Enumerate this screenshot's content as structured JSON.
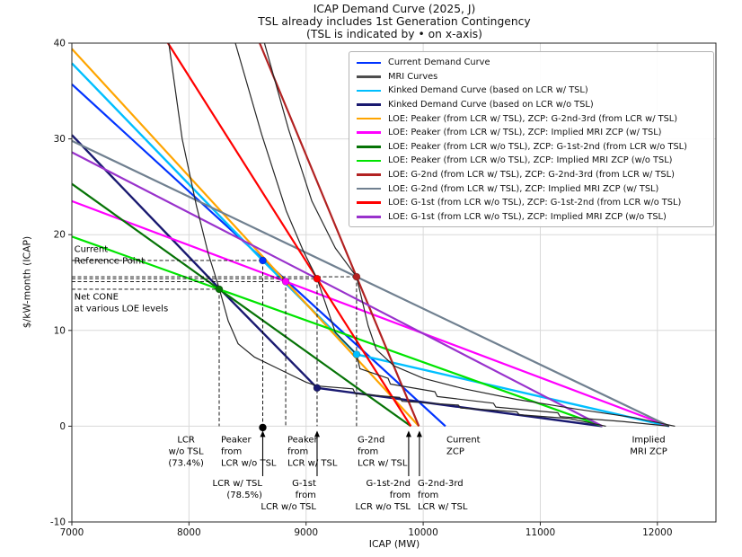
{
  "title": {
    "line1": "ICAP Demand Curve (2025, J)",
    "line2": "TSL already includes 1st Generation Contingency",
    "line3": "(TSL is indicated by • on x-axis)"
  },
  "axes": {
    "xlabel": "ICAP (MW)",
    "ylabel": "$/kW-month (ICAP)",
    "xlim": [
      7000,
      12500
    ],
    "ylim": [
      -10,
      40
    ],
    "xticks": [
      7000,
      8000,
      9000,
      10000,
      11000,
      12000
    ],
    "yticks": [
      -10,
      0,
      10,
      20,
      30,
      40
    ],
    "grid": true
  },
  "legend": {
    "position": "upper right",
    "entries": [
      {
        "label": "Current Demand Curve",
        "color": "#0033ff"
      },
      {
        "label": "MRI Curves",
        "color": "#4d4d4d"
      },
      {
        "label": "Kinked Demand Curve (based on LCR w/ TSL)",
        "color": "#00bfff"
      },
      {
        "label": "Kinked Demand Curve (based on LCR w/o TSL)",
        "color": "#191970"
      },
      {
        "label": "LOE: Peaker (from LCR w/ TSL), ZCP: G-2nd-3rd (from LCR w/ TSL)",
        "color": "#ffa500"
      },
      {
        "label": "LOE: Peaker (from LCR w/ TSL), ZCP: Implied MRI ZCP (w/ TSL)",
        "color": "#ff00ff"
      },
      {
        "label": "LOE: Peaker (from LCR w/o TSL), ZCP: G-1st-2nd (from LCR w/o TSL)",
        "color": "#067306"
      },
      {
        "label": "LOE: Peaker (from LCR w/o TSL), ZCP: Implied MRI ZCP (w/o TSL)",
        "color": "#00e400"
      },
      {
        "label": "LOE: G-2nd (from LCR w/ TSL), ZCP: G-2nd-3rd (from LCR w/ TSL)",
        "color": "#b22222"
      },
      {
        "label": "LOE: G-2nd (from LCR w/ TSL), ZCP: Implied MRI ZCP (w/ TSL)",
        "color": "#708090"
      },
      {
        "label": "LOE: G-1st (from LCR w/o TSL), ZCP: G-1st-2nd (from LCR w/o TSL)",
        "color": "#ff0000"
      },
      {
        "label": "LOE: G-1st (from LCR w/o TSL), ZCP: Implied MRI ZCP (w/o TSL)",
        "color": "#9932cc"
      }
    ]
  },
  "chart_data": {
    "type": "line",
    "xlabel": "ICAP (MW)",
    "ylabel": "$/kW-month (ICAP)",
    "key_values": {
      "lcr_wo_tsl": "73.4%",
      "lcr_w_tsl": "78.5%",
      "lcr_w_tsl_mw": 8630,
      "lcr_wo_tsl_label_mw": 7975,
      "peaker_from_lcr_wo_tsl_mw": 8258,
      "peaker_from_lcr_w_tsl_mw": 8826,
      "g1st_from_lcr_wo_tsl_mw": 9094,
      "g2nd_from_lcr_w_tsl_mw": 9431,
      "g1st_2nd_zcp_mw": 9895,
      "g2nd_3rd_zcp_mw": 9963,
      "current_zcp_mw": 10190,
      "implied_mri_zcp_w_tsl_mw": 12100,
      "implied_mri_zcp_wo_tsl_mw": 11530,
      "current_reference_price": 17.3,
      "net_cone_levels": [
        14.3,
        15.1,
        15.4,
        15.6
      ]
    },
    "series": [
      {
        "name": "current-demand-curve",
        "color": "#0033ff",
        "width": 2.2,
        "points": [
          [
            7000,
            35.7
          ],
          [
            10190,
            0
          ]
        ]
      },
      {
        "name": "kinked-demand-curve-lcr-w-tsl",
        "color": "#00bfff",
        "width": 2.4,
        "points": [
          [
            7000,
            37.9
          ],
          [
            8630,
            17.3
          ],
          [
            9431,
            7.5
          ],
          [
            12100,
            0
          ]
        ]
      },
      {
        "name": "kinked-demand-curve-lcr-wo-tsl",
        "color": "#191970",
        "width": 2.4,
        "points": [
          [
            7000,
            30.4
          ],
          [
            8258,
            14.4
          ],
          [
            9094,
            4.0
          ],
          [
            11530,
            0
          ]
        ]
      },
      {
        "name": "loe-peaker-wtsl-zcp-g2nd3rd",
        "color": "#ffa500",
        "width": 2.2,
        "points": [
          [
            7000,
            39.4
          ],
          [
            8826,
            15.1
          ],
          [
            9963,
            0
          ]
        ]
      },
      {
        "name": "loe-peaker-wtsl-zcp-implied-mri",
        "color": "#ff00ff",
        "width": 2.2,
        "points": [
          [
            7000,
            23.5
          ],
          [
            8826,
            15.1
          ],
          [
            12100,
            0
          ]
        ]
      },
      {
        "name": "loe-peaker-wotsl-zcp-g1st2nd",
        "color": "#067306",
        "width": 2.2,
        "points": [
          [
            7000,
            25.3
          ],
          [
            8258,
            14.3
          ],
          [
            9895,
            0
          ]
        ]
      },
      {
        "name": "loe-peaker-wotsl-zcp-implied-mri",
        "color": "#00e400",
        "width": 2.2,
        "points": [
          [
            7000,
            19.8
          ],
          [
            8258,
            14.3
          ],
          [
            11530,
            0
          ]
        ]
      },
      {
        "name": "loe-g2nd-wtsl-zcp-g2nd3rd",
        "color": "#b22222",
        "width": 2.2,
        "points": [
          [
            8604,
            40
          ],
          [
            9431,
            15.6
          ],
          [
            9963,
            0
          ]
        ]
      },
      {
        "name": "loe-g2nd-wtsl-zcp-implied-mri",
        "color": "#708090",
        "width": 2.2,
        "points": [
          [
            7000,
            29.8
          ],
          [
            9431,
            15.6
          ],
          [
            12100,
            0
          ]
        ]
      },
      {
        "name": "loe-g1st-wotsl-zcp-g1st2nd",
        "color": "#ff0000",
        "width": 2.2,
        "points": [
          [
            7821,
            40
          ],
          [
            9094,
            15.4
          ],
          [
            9895,
            0
          ]
        ]
      },
      {
        "name": "loe-g1st-wotsl-zcp-implied-mri",
        "color": "#9932cc",
        "width": 2.2,
        "points": [
          [
            7000,
            28.6
          ],
          [
            9094,
            15.4
          ],
          [
            11530,
            0
          ]
        ]
      },
      {
        "name": "mri-curve-a",
        "color": "#262626",
        "width": 1.2,
        "points": [
          [
            7828,
            40
          ],
          [
            7942,
            30
          ],
          [
            8064,
            23
          ],
          [
            8165,
            18
          ],
          [
            8258,
            14.4
          ],
          [
            8335,
            11
          ],
          [
            8420,
            8.6
          ],
          [
            8560,
            7.2
          ],
          [
            8780,
            5.9
          ],
          [
            9000,
            4.6
          ],
          [
            9094,
            4.2
          ],
          [
            9400,
            3.9
          ],
          [
            9420,
            3.4
          ],
          [
            9800,
            3.0
          ],
          [
            9820,
            2.6
          ],
          [
            10300,
            2.2
          ],
          [
            10320,
            1.9
          ],
          [
            10800,
            1.5
          ],
          [
            10820,
            1.2
          ],
          [
            11250,
            0.8
          ],
          [
            11560,
            0
          ]
        ]
      },
      {
        "name": "mri-curve-b",
        "color": "#262626",
        "width": 1.2,
        "points": [
          [
            8396,
            40
          ],
          [
            8620,
            30.5
          ],
          [
            8830,
            22.5
          ],
          [
            8980,
            18.2
          ],
          [
            9094,
            15.4
          ],
          [
            9250,
            9.8
          ],
          [
            9431,
            7.5
          ],
          [
            9460,
            6.0
          ],
          [
            9700,
            5.0
          ],
          [
            9720,
            4.4
          ],
          [
            10100,
            3.6
          ],
          [
            10120,
            3.1
          ],
          [
            10600,
            2.4
          ],
          [
            10620,
            2.0
          ],
          [
            11150,
            1.4
          ],
          [
            11170,
            1.0
          ],
          [
            11700,
            0.5
          ],
          [
            12100,
            0
          ]
        ]
      },
      {
        "name": "mri-curve-c",
        "color": "#262626",
        "width": 1.2,
        "points": [
          [
            8645,
            40
          ],
          [
            8850,
            31
          ],
          [
            9050,
            23.5
          ],
          [
            9250,
            18.6
          ],
          [
            9431,
            15.6
          ],
          [
            9530,
            10.5
          ],
          [
            9600,
            8.0
          ],
          [
            9750,
            6.3
          ],
          [
            10000,
            5.0
          ],
          [
            10350,
            3.9
          ],
          [
            10800,
            2.8
          ],
          [
            11300,
            1.8
          ],
          [
            11800,
            0.9
          ],
          [
            12150,
            0
          ]
        ]
      }
    ],
    "markers": [
      {
        "x": 8258,
        "y": 14.3,
        "color": "#067306",
        "label": "Net CONE @ Peaker from LCR w/o TSL"
      },
      {
        "x": 8630,
        "y": 17.3,
        "color": "#0033ff",
        "label": "Current Reference Point"
      },
      {
        "x": 8826,
        "y": 15.1,
        "color": "#ff00ff",
        "label": "Net CONE @ Peaker from LCR w/ TSL"
      },
      {
        "x": 9094,
        "y": 15.4,
        "color": "#ff0000",
        "label": "Net CONE @ G-1st from LCR w/o TSL"
      },
      {
        "x": 9431,
        "y": 15.6,
        "color": "#b22222",
        "label": "Net CONE @ G-2nd from LCR w/ TSL"
      },
      {
        "x": 9431,
        "y": 7.5,
        "color": "#00bfff",
        "label": "Kink of kinked demand curve (LCR w/ TSL)"
      },
      {
        "x": 9094,
        "y": 4.0,
        "color": "#191970",
        "label": "Kink of kinked demand curve (LCR w/o TSL)"
      }
    ],
    "tsl_marker": {
      "x": 8630,
      "y": 0,
      "color": "#000000",
      "label": "TSL (on x-axis)"
    },
    "guides": {
      "dashed_h": [
        {
          "y": 17.3,
          "x0": 7000,
          "x1": 8630
        },
        {
          "y": 15.6,
          "x0": 7000,
          "x1": 9431
        },
        {
          "y": 15.4,
          "x0": 7000,
          "x1": 9094
        },
        {
          "y": 15.1,
          "x0": 7000,
          "x1": 8826
        },
        {
          "y": 14.3,
          "x0": 7000,
          "x1": 8258
        }
      ],
      "dashed_v": [
        {
          "x": 8258,
          "y0": 14.3,
          "y1": 0
        },
        {
          "x": 8630,
          "y0": 17.3,
          "y1": 0
        },
        {
          "x": 8826,
          "y0": 15.1,
          "y1": 0
        },
        {
          "x": 9094,
          "y0": 15.4,
          "y1": 0
        },
        {
          "x": 9431,
          "y0": 15.6,
          "y1": 0
        }
      ]
    },
    "annotations": [
      {
        "name": "current-reference-point-label",
        "lines": [
          "Current",
          "Reference Point"
        ],
        "x": 7020,
        "y": 18.2,
        "align": "left"
      },
      {
        "name": "net-cone-label",
        "lines": [
          "Net CONE",
          "at various LOE levels"
        ],
        "x": 7020,
        "y": 13.2,
        "align": "left"
      },
      {
        "name": "lcr-wo-tsl-label",
        "lines": [
          "LCR",
          "w/o TSL",
          "(73.4%)"
        ],
        "x": 7975,
        "y": -1.7,
        "align": "center"
      },
      {
        "name": "peaker-from-lcr-wo-tsl-label",
        "lines": [
          "Peaker",
          "from",
          "LCR w/o TSL"
        ],
        "x": 8273,
        "y": -1.7,
        "align": "left"
      },
      {
        "name": "peaker-from-lcr-w-tsl-label",
        "lines": [
          "Peaker",
          "from",
          "LCR w/ TSL"
        ],
        "x": 8841,
        "y": -1.7,
        "align": "left"
      },
      {
        "name": "g2nd-from-lcr-w-tsl-label",
        "lines": [
          "G-2nd",
          "from",
          "LCR w/ TSL"
        ],
        "x": 9439,
        "y": -1.7,
        "align": "left"
      },
      {
        "name": "current-zcp-label",
        "lines": [
          "Current",
          "ZCP"
        ],
        "x": 10199,
        "y": -1.7,
        "align": "left"
      },
      {
        "name": "implied-mri-zcp-label",
        "lines": [
          "Implied",
          "MRI ZCP"
        ],
        "x": 11925,
        "y": -1.7,
        "align": "center"
      },
      {
        "name": "lcr-w-tsl-label",
        "lines": [
          "LCR w/ TSL",
          "(78.5%)"
        ],
        "x": 8626,
        "y": -6.25,
        "align": "right",
        "arrow_x": 8630
      },
      {
        "name": "g1st-from-lcr-wo-tsl-label",
        "lines": [
          "G-1st",
          "from",
          "LCR w/o TSL"
        ],
        "x": 9086,
        "y": -6.25,
        "align": "right",
        "arrow_x": 9094
      },
      {
        "name": "g1st-2nd-from-lcr-wo-tsl-label",
        "lines": [
          "G-1st-2nd",
          "from",
          "LCR w/o TSL"
        ],
        "x": 9892,
        "y": -6.25,
        "align": "right",
        "arrow_x": 9876
      },
      {
        "name": "g2nd-3rd-from-lcr-w-tsl-label",
        "lines": [
          "G-2nd-3rd",
          "from",
          "LCR w/ TSL"
        ],
        "x": 9953,
        "y": -6.25,
        "align": "left",
        "arrow_x": 9968
      }
    ]
  }
}
